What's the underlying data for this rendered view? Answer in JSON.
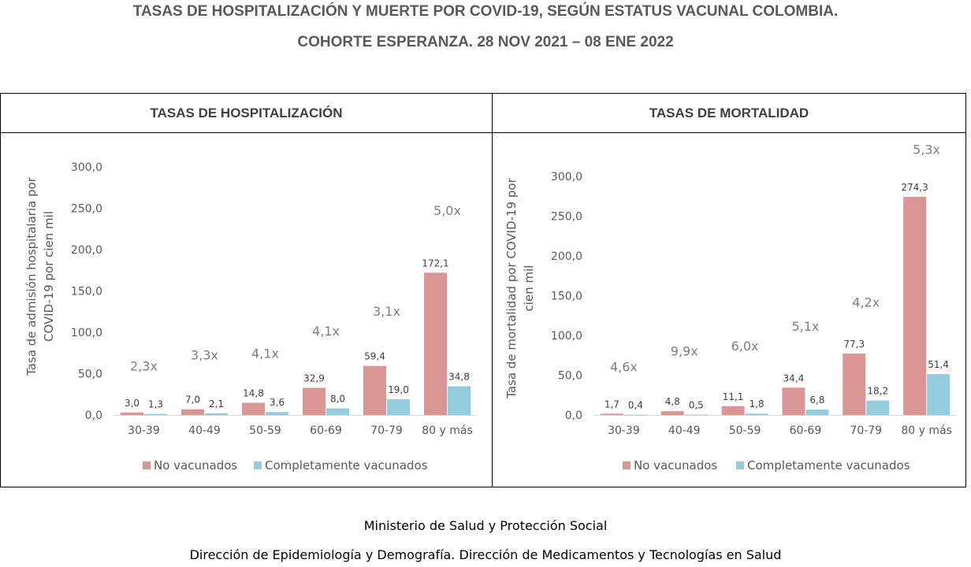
{
  "title_line1": "TASAS DE HOSPITALIZACIÓN Y MUERTE POR COVID-19, SEGÚN ESTATUS VACUNAL COLOMBIA.",
  "title_line2": "COHORTE ESPERANZA. 28 NOV 2021 – 08 ENE 2022",
  "footer_line1": "Ministerio de Salud y Protección Social",
  "footer_line2": "Dirección de Epidemiología y Demografía. Dirección de Medicamentos y Tecnologías en Salud",
  "colors": {
    "unvaccinated": "#d99694",
    "vaccinated": "#93cddd",
    "text": "#595959",
    "ratio": "#7f7f7f"
  },
  "chart_data": [
    {
      "type": "bar",
      "panel_title": "TASAS DE HOSPITALIZACIÓN",
      "ylabel_lines": [
        "Tasa de admisión hospitalaria por",
        "COVID-19 por cien mil"
      ],
      "categories": [
        "30-39",
        "40-49",
        "50-59",
        "60-69",
        "70-79",
        "80 y más"
      ],
      "series": [
        {
          "name": "No vacunados",
          "values": [
            3.0,
            7.0,
            14.8,
            32.9,
            59.4,
            172.1
          ],
          "labels": [
            "3,0",
            "7,0",
            "14,8",
            "32,9",
            "59,4",
            "172,1"
          ]
        },
        {
          "name": "Completamente vacunados",
          "values": [
            1.3,
            2.1,
            3.6,
            8.0,
            19.0,
            34.8
          ],
          "labels": [
            "1,3",
            "2,1",
            "3,6",
            "8,0",
            "19,0",
            "34,8"
          ]
        }
      ],
      "ratios": [
        "2,3x",
        "3,3x",
        "4,1x",
        "4,1x",
        "3,1x",
        "5,0x"
      ],
      "ratio_levels": [
        54,
        67,
        69,
        96,
        120,
        242
      ],
      "ylim": [
        0,
        300
      ],
      "yticks": [
        0,
        50,
        100,
        150,
        200,
        250,
        300
      ],
      "ytick_labels": [
        "0,0",
        "50,0",
        "100,0",
        "150,0",
        "200,0",
        "250,0",
        "300,0"
      ],
      "legend": "bottom"
    },
    {
      "type": "bar",
      "panel_title": "TASAS DE MORTALIDAD",
      "ylabel_lines": [
        "Tasa de mortalidad por COVID-19 por",
        "cien mil"
      ],
      "categories": [
        "30-39",
        "40-49",
        "50-59",
        "60-69",
        "70-79",
        "80 y más"
      ],
      "series": [
        {
          "name": "No vacunados",
          "values": [
            1.7,
            4.8,
            11.1,
            34.4,
            77.3,
            274.3
          ],
          "labels": [
            "1,7",
            "4,8",
            "11,1",
            "34,4",
            "77,3",
            "274,3"
          ]
        },
        {
          "name": "Completamente vacunados",
          "values": [
            0.4,
            0.5,
            1.8,
            6.8,
            18.2,
            51.4
          ],
          "labels": [
            "0,4",
            "0,5",
            "1,8",
            "6,8",
            "18,2",
            "51,4"
          ]
        }
      ],
      "ratios": [
        "4,6x",
        "9,9x",
        "6,0x",
        "5,1x",
        "4,2x",
        "5,3x"
      ],
      "ratio_levels": [
        55,
        75,
        81,
        106,
        136,
        328
      ],
      "ylim": [
        0,
        300
      ],
      "yticks": [
        0,
        50,
        100,
        150,
        200,
        250,
        300
      ],
      "ytick_labels": [
        "0,0",
        "50,0",
        "100,0",
        "150,0",
        "200,0",
        "250,0",
        "300,0"
      ],
      "legend": "bottom"
    }
  ]
}
